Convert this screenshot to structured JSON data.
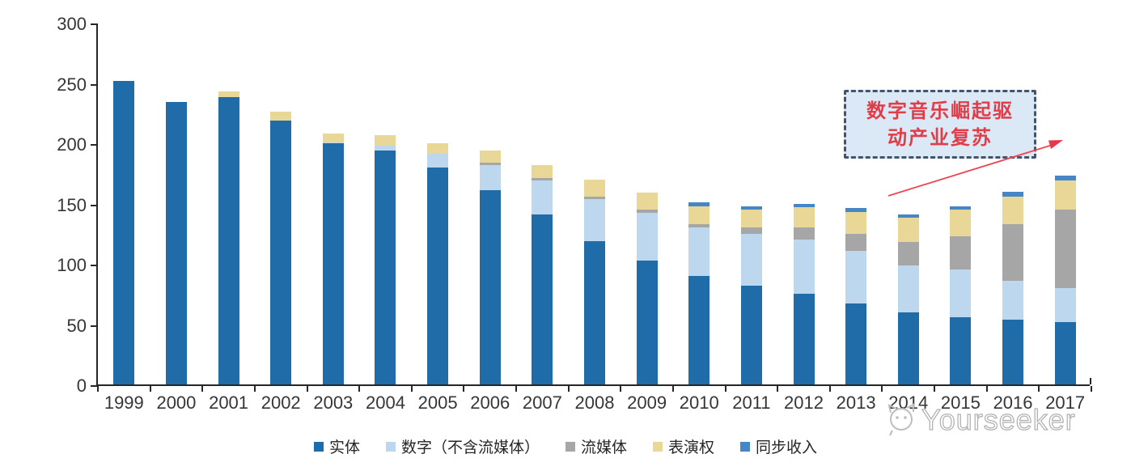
{
  "chart_data": {
    "type": "bar",
    "stacked": true,
    "title": "",
    "xlabel": "",
    "ylabel": "",
    "x": [
      1999,
      2000,
      2001,
      2002,
      2003,
      2004,
      2005,
      2006,
      2007,
      2008,
      2009,
      2010,
      2011,
      2012,
      2013,
      2014,
      2015,
      2016,
      2017
    ],
    "series": [
      {
        "name": "实体",
        "color": "#1f6ca8",
        "values": [
          252,
          234,
          238,
          219,
          200,
          194,
          180,
          161,
          141,
          119,
          103,
          90,
          82,
          75,
          67,
          60,
          56,
          54,
          52
        ]
      },
      {
        "name": "数字（不含流媒体）",
        "color": "#bdd7ee",
        "values": [
          0,
          0,
          0,
          0,
          1,
          4,
          11,
          21,
          28,
          35,
          39,
          40,
          43,
          45,
          44,
          39,
          39,
          32,
          28
        ]
      },
      {
        "name": "流媒体",
        "color": "#a6a6a6",
        "values": [
          0,
          0,
          0,
          0,
          0,
          0,
          0,
          2,
          2,
          2,
          3,
          3,
          5,
          10,
          14,
          19,
          28,
          47,
          65
        ]
      },
      {
        "name": "表演权",
        "color": "#e8d796",
        "values": [
          0,
          0,
          5,
          7,
          7,
          9,
          9,
          10,
          11,
          14,
          14,
          15,
          15,
          17,
          18,
          20,
          22,
          23,
          24
        ]
      },
      {
        "name": "同步收入",
        "color": "#4686c6",
        "values": [
          0,
          0,
          0,
          0,
          0,
          0,
          0,
          0,
          0,
          0,
          0,
          3,
          3,
          3,
          3,
          3,
          3,
          4,
          4
        ]
      }
    ],
    "ylim": [
      0,
      300
    ],
    "yticks": [
      0,
      50,
      100,
      150,
      200,
      250,
      300
    ],
    "grid": false,
    "legend_position": "bottom"
  },
  "annotation": {
    "line1": "数字音乐崛起驱",
    "line2": "动产业复苏"
  },
  "watermark": {
    "text": "Yourseeker",
    "logo_icon": "animal-face-icon"
  },
  "colors": {
    "axis": "#262626",
    "annotation_border": "#44546a",
    "annotation_bg": "#dbe9f6",
    "annotation_text": "#e23c48",
    "arrow": "#ef4453",
    "watermark": "#b3b3b3"
  }
}
